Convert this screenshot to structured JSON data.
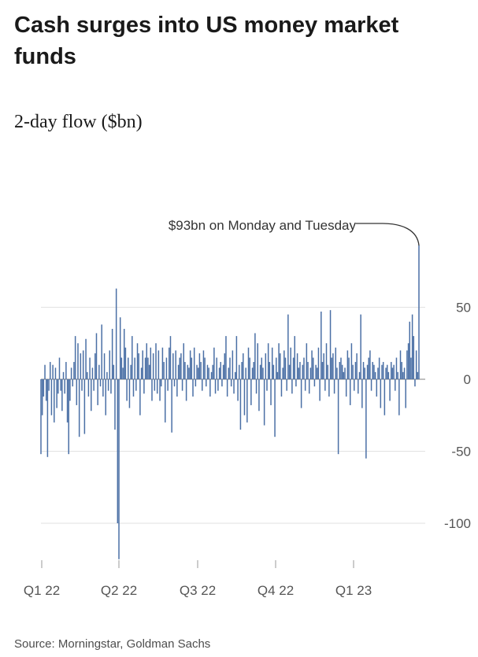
{
  "title": "Cash surges into US money market funds",
  "subtitle": "2-day flow ($bn)",
  "source": "Source: Morningstar, Goldman Sachs",
  "colors": {
    "bar": "#4a6fa5",
    "grid": "#e2e2e2",
    "zero_line": "#9a9a9a",
    "text": "#1a1a1a"
  },
  "chart_data": {
    "type": "bar",
    "title": "Cash surges into US money market funds",
    "subtitle": "2-day flow ($bn)",
    "ylabel": "",
    "xlabel": "",
    "ylim": [
      -125,
      95
    ],
    "y_ticks": [
      50,
      0,
      -50,
      -100
    ],
    "x_ticks": [
      "Q1 22",
      "Q2 22",
      "Q3 22",
      "Q4 22",
      "Q1 23"
    ],
    "grid": true,
    "y_axis_side": "right",
    "annotation": {
      "text": "$93bn on Monday and Tuesday",
      "value": 93
    },
    "series": [
      {
        "values": [
          -52,
          -25,
          -12,
          10,
          -15,
          -54,
          -8,
          12,
          -25,
          10,
          -30,
          8,
          -20,
          -10,
          15,
          -8,
          -22,
          5,
          -10,
          12,
          -30,
          -52,
          -15,
          8,
          -5,
          12,
          30,
          -18,
          25,
          -40,
          18,
          -8,
          20,
          -38,
          28,
          5,
          -12,
          15,
          -22,
          8,
          -8,
          18,
          32,
          -18,
          10,
          -5,
          38,
          -12,
          18,
          -25,
          5,
          -8,
          20,
          -10,
          35,
          10,
          -35,
          63,
          -100,
          -125,
          43,
          15,
          8,
          35,
          22,
          -15,
          15,
          -20,
          10,
          30,
          -12,
          15,
          -8,
          25,
          18,
          -25,
          8,
          20,
          -10,
          15,
          25,
          15,
          10,
          22,
          -15,
          18,
          -8,
          25,
          -10,
          20,
          -15,
          -5,
          22,
          12,
          -30,
          15,
          -8,
          22,
          30,
          -37,
          18,
          -5,
          20,
          -12,
          10,
          15,
          18,
          -8,
          25,
          12,
          -15,
          10,
          8,
          20,
          15,
          -12,
          22,
          -5,
          10,
          8,
          18,
          12,
          -8,
          20,
          15,
          -5,
          10,
          8,
          -12,
          5,
          10,
          22,
          -10,
          15,
          -8,
          8,
          12,
          -5,
          10,
          18,
          30,
          -12,
          8,
          15,
          -5,
          20,
          -10,
          5,
          30,
          -15,
          10,
          -35,
          12,
          18,
          -25,
          8,
          -30,
          22,
          15,
          -18,
          8,
          12,
          32,
          -10,
          25,
          -22,
          10,
          15,
          8,
          -32,
          18,
          -8,
          25,
          12,
          -18,
          22,
          10,
          -40,
          15,
          5,
          25,
          18,
          -12,
          8,
          20,
          15,
          -8,
          45,
          10,
          22,
          -10,
          15,
          30,
          -5,
          18,
          8,
          12,
          -20,
          10,
          15,
          -8,
          25,
          12,
          -10,
          8,
          20,
          15,
          -5,
          10,
          8,
          22,
          -15,
          47,
          12,
          18,
          -8,
          25,
          10,
          -12,
          48,
          15,
          18,
          -10,
          22,
          8,
          -52,
          12,
          15,
          10,
          5,
          8,
          -12,
          20,
          15,
          -18,
          25,
          10,
          -8,
          12,
          18,
          -10,
          5,
          45,
          -20,
          12,
          8,
          -55,
          10,
          15,
          20,
          -8,
          12,
          10,
          5,
          -12,
          8,
          15,
          -20,
          10,
          12,
          -25,
          8,
          10,
          5,
          -15,
          12,
          8,
          10,
          -8,
          15,
          5,
          -25,
          20,
          12,
          5,
          8,
          -20,
          20,
          25,
          40,
          15,
          45,
          30,
          -5,
          20,
          5,
          93
        ]
      }
    ]
  }
}
